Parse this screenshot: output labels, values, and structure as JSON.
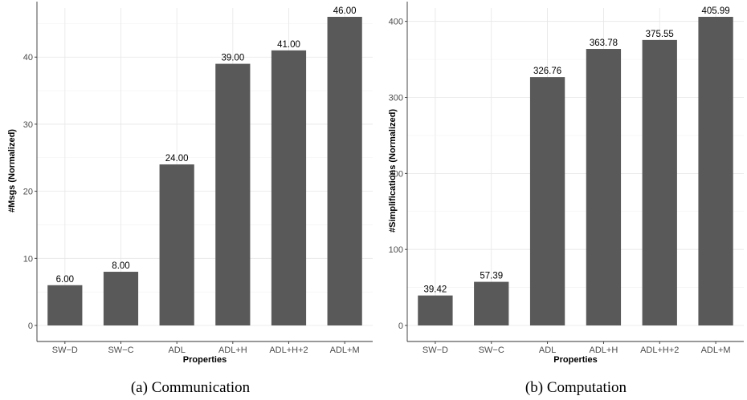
{
  "chart_data": [
    {
      "type": "bar",
      "title": "",
      "xlabel": "Properties",
      "ylabel": "#Msgs (Normalized)",
      "categories": [
        "SW−D",
        "SW−C",
        "ADL",
        "ADL+H",
        "ADL+H+2",
        "ADL+M"
      ],
      "values": [
        6,
        8,
        24,
        39,
        41,
        46
      ],
      "value_labels": [
        "6.00",
        "8.00",
        "24.00",
        "39.00",
        "41.00",
        "46.00"
      ],
      "yticks": [
        0,
        10,
        20,
        30,
        40
      ],
      "ytick_labels": [
        "0",
        "10",
        "20",
        "30",
        "40"
      ],
      "ylim": [
        0,
        46
      ],
      "grid": true,
      "bar_color": "#595959",
      "caption": "(a) Communication"
    },
    {
      "type": "bar",
      "title": "",
      "xlabel": "Properties",
      "ylabel": "#Simplifications (Normalized)",
      "categories": [
        "SW−D",
        "SW−C",
        "ADL",
        "ADL+H",
        "ADL+H+2",
        "ADL+M"
      ],
      "values": [
        39.42,
        57.39,
        326.76,
        363.78,
        375.55,
        405.99
      ],
      "value_labels": [
        "39.42",
        "57.39",
        "326.76",
        "363.78",
        "375.55",
        "405.99"
      ],
      "yticks": [
        0,
        100,
        200,
        300,
        400
      ],
      "ytick_labels": [
        "0",
        "100",
        "200",
        "300",
        "400"
      ],
      "ylim": [
        0,
        405.99
      ],
      "grid": true,
      "bar_color": "#595959",
      "caption": "(b) Computation"
    }
  ]
}
